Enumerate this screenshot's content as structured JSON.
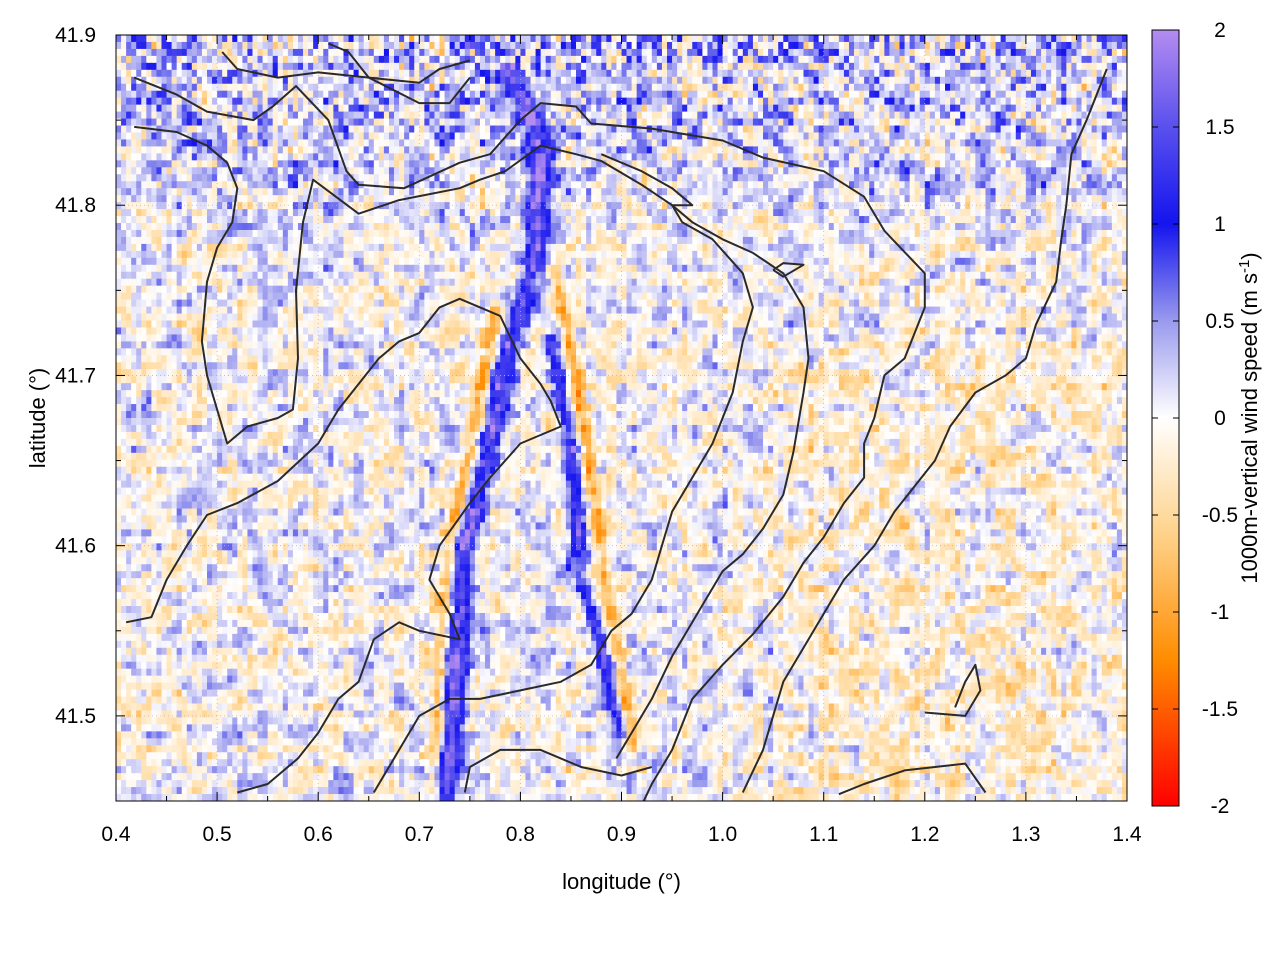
{
  "chart_data": {
    "type": "heatmap",
    "xlabel": "longitude (°)",
    "ylabel": "latitude (°)",
    "xlim": [
      0.4,
      1.4
    ],
    "ylim": [
      41.45,
      41.9
    ],
    "x_ticks": [
      0.4,
      0.5,
      0.6,
      0.7,
      0.8,
      0.9,
      1.0,
      1.1,
      1.2,
      1.3,
      1.4
    ],
    "x_tick_labels": [
      "0.4",
      "0.5",
      "0.6",
      "0.7",
      "0.8",
      "0.9",
      "1.0",
      "1.1",
      "1.2",
      "1.3",
      "1.4"
    ],
    "y_ticks": [
      41.5,
      41.6,
      41.7,
      41.8,
      41.9
    ],
    "y_tick_labels": [
      "41.5",
      "41.6",
      "41.7",
      "41.8",
      "41.9"
    ],
    "grid": true,
    "colorbar": {
      "label_main": "1000m-vertical wind speed (m s",
      "label_sup": "-1",
      "label_end": ")",
      "range": [
        -2,
        2
      ],
      "ticks": [
        2,
        1.5,
        1,
        0.5,
        0,
        -0.5,
        -1,
        -1.5,
        -2
      ],
      "tick_labels": [
        "2",
        "1.5",
        "1",
        "0.5",
        "0",
        "-0.5",
        "-1",
        "-1.5",
        "-2"
      ],
      "colors": [
        {
          "value": -2.0,
          "color": "#ff0000"
        },
        {
          "value": -1.25,
          "color": "#ff8c00"
        },
        {
          "value": -0.6,
          "color": "#ffd28a"
        },
        {
          "value": 0.0,
          "color": "#ffffff"
        },
        {
          "value": 0.5,
          "color": "#9a9aee"
        },
        {
          "value": 1.0,
          "color": "#1414ee"
        },
        {
          "value": 1.5,
          "color": "#5a50ee"
        },
        {
          "value": 2.0,
          "color": "#b48cf0"
        }
      ]
    },
    "features": {
      "updraft_band": [
        [
          0.79,
          41.88
        ],
        [
          0.82,
          41.84
        ],
        [
          0.815,
          41.77
        ],
        [
          0.79,
          41.72
        ],
        [
          0.77,
          41.66
        ],
        [
          0.745,
          41.6
        ],
        [
          0.735,
          41.52
        ],
        [
          0.725,
          41.45
        ]
      ],
      "updraft_band_east": [
        [
          0.83,
          41.72
        ],
        [
          0.85,
          41.66
        ],
        [
          0.86,
          41.58
        ],
        [
          0.885,
          41.53
        ],
        [
          0.9,
          41.49
        ]
      ],
      "downdraft_band_west": [
        [
          0.775,
          41.74
        ],
        [
          0.755,
          41.67
        ],
        [
          0.73,
          41.6
        ],
        [
          0.72,
          41.52
        ],
        [
          0.715,
          41.45
        ]
      ],
      "downdraft_band_east": [
        [
          0.835,
          41.76
        ],
        [
          0.855,
          41.7
        ],
        [
          0.87,
          41.64
        ],
        [
          0.89,
          41.56
        ],
        [
          0.91,
          41.48
        ]
      ]
    },
    "contours": [
      [
        [
          0.418,
          41.875
        ],
        [
          0.46,
          41.865
        ],
        [
          0.49,
          41.855
        ],
        [
          0.536,
          41.85
        ],
        [
          0.555,
          41.858
        ],
        [
          0.578,
          41.87
        ],
        [
          0.61,
          41.85
        ],
        [
          0.628,
          41.82
        ],
        [
          0.64,
          41.812
        ],
        [
          0.685,
          41.81
        ],
        [
          0.74,
          41.825
        ],
        [
          0.77,
          41.83
        ],
        [
          0.8,
          41.85
        ],
        [
          0.82,
          41.86
        ],
        [
          0.855,
          41.858
        ],
        [
          0.87,
          41.848
        ],
        [
          0.93,
          41.845
        ],
        [
          0.98,
          41.84
        ],
        [
          1.0,
          41.838
        ],
        [
          1.04,
          41.828
        ],
        [
          1.1,
          41.82
        ],
        [
          1.14,
          41.805
        ],
        [
          1.16,
          41.785
        ],
        [
          1.2,
          41.76
        ],
        [
          1.2,
          41.74
        ],
        [
          1.18,
          41.71
        ],
        [
          1.16,
          41.7
        ],
        [
          1.15,
          41.675
        ],
        [
          1.14,
          41.66
        ],
        [
          1.14,
          41.64
        ],
        [
          1.12,
          41.625
        ],
        [
          1.1,
          41.605
        ],
        [
          1.08,
          41.59
        ],
        [
          1.06,
          41.57
        ],
        [
          1.03,
          41.548
        ],
        [
          1.0,
          41.53
        ],
        [
          0.97,
          41.51
        ],
        [
          0.95,
          41.48
        ],
        [
          0.93,
          41.46
        ],
        [
          0.922,
          41.45
        ]
      ],
      [
        [
          0.418,
          41.846
        ],
        [
          0.46,
          41.843
        ],
        [
          0.49,
          41.835
        ],
        [
          0.51,
          41.825
        ],
        [
          0.52,
          41.81
        ],
        [
          0.515,
          41.79
        ],
        [
          0.5,
          41.775
        ],
        [
          0.49,
          41.755
        ],
        [
          0.485,
          41.72
        ],
        [
          0.49,
          41.7
        ],
        [
          0.5,
          41.68
        ],
        [
          0.51,
          41.66
        ],
        [
          0.53,
          41.67
        ],
        [
          0.56,
          41.675
        ],
        [
          0.575,
          41.68
        ],
        [
          0.58,
          41.71
        ],
        [
          0.578,
          41.75
        ],
        [
          0.585,
          41.79
        ],
        [
          0.595,
          41.815
        ],
        [
          0.64,
          41.795
        ],
        [
          0.68,
          41.803
        ],
        [
          0.74,
          41.81
        ],
        [
          0.76,
          41.815
        ],
        [
          0.785,
          41.82
        ],
        [
          0.82,
          41.835
        ],
        [
          0.855,
          41.83
        ],
        [
          0.88,
          41.826
        ],
        [
          0.92,
          41.812
        ],
        [
          0.95,
          41.8
        ],
        [
          0.97,
          41.79
        ],
        [
          1.0,
          41.78
        ],
        [
          1.03,
          41.772
        ],
        [
          1.06,
          41.76
        ],
        [
          1.08,
          41.74
        ],
        [
          1.085,
          41.71
        ],
        [
          1.08,
          41.69
        ],
        [
          1.07,
          41.655
        ],
        [
          1.06,
          41.63
        ],
        [
          1.04,
          41.61
        ],
        [
          1.02,
          41.595
        ],
        [
          1.0,
          41.585
        ],
        [
          0.975,
          41.56
        ],
        [
          0.95,
          41.535
        ],
        [
          0.93,
          41.51
        ],
        [
          0.91,
          41.49
        ],
        [
          0.895,
          41.475
        ]
      ],
      [
        [
          0.41,
          41.555
        ],
        [
          0.435,
          41.558
        ],
        [
          0.45,
          41.58
        ],
        [
          0.47,
          41.6
        ],
        [
          0.49,
          41.618
        ],
        [
          0.52,
          41.625
        ],
        [
          0.56,
          41.638
        ],
        [
          0.6,
          41.66
        ],
        [
          0.62,
          41.68
        ],
        [
          0.64,
          41.695
        ],
        [
          0.66,
          41.71
        ],
        [
          0.68,
          41.72
        ],
        [
          0.7,
          41.725
        ],
        [
          0.72,
          41.74
        ],
        [
          0.74,
          41.745
        ],
        [
          0.78,
          41.735
        ],
        [
          0.8,
          41.71
        ],
        [
          0.82,
          41.695
        ],
        [
          0.83,
          41.685
        ],
        [
          0.84,
          41.67
        ],
        [
          0.8,
          41.66
        ],
        [
          0.77,
          41.64
        ],
        [
          0.75,
          41.625
        ],
        [
          0.72,
          41.6
        ],
        [
          0.71,
          41.58
        ],
        [
          0.73,
          41.56
        ],
        [
          0.74,
          41.545
        ],
        [
          0.7,
          41.55
        ],
        [
          0.68,
          41.555
        ],
        [
          0.655,
          41.545
        ],
        [
          0.64,
          41.52
        ],
        [
          0.62,
          41.51
        ],
        [
          0.6,
          41.49
        ],
        [
          0.58,
          41.475
        ],
        [
          0.55,
          41.46
        ],
        [
          0.52,
          41.455
        ]
      ],
      [
        [
          0.655,
          41.455
        ],
        [
          0.68,
          41.48
        ],
        [
          0.7,
          41.5
        ],
        [
          0.73,
          41.51
        ],
        [
          0.76,
          41.51
        ],
        [
          0.8,
          41.515
        ],
        [
          0.84,
          41.52
        ],
        [
          0.87,
          41.53
        ],
        [
          0.89,
          41.55
        ],
        [
          0.91,
          41.56
        ],
        [
          0.93,
          41.58
        ],
        [
          0.94,
          41.6
        ],
        [
          0.95,
          41.62
        ],
        [
          0.97,
          41.64
        ],
        [
          0.99,
          41.66
        ],
        [
          1.01,
          41.69
        ],
        [
          1.02,
          41.72
        ],
        [
          1.03,
          41.74
        ],
        [
          1.02,
          41.76
        ],
        [
          0.99,
          41.78
        ],
        [
          0.96,
          41.79
        ],
        [
          0.95,
          41.8
        ],
        [
          0.97,
          41.8
        ],
        [
          0.95,
          41.81
        ],
        [
          0.92,
          41.82
        ],
        [
          0.88,
          41.83
        ]
      ],
      [
        [
          0.745,
          41.455
        ],
        [
          0.75,
          41.47
        ],
        [
          0.78,
          41.48
        ],
        [
          0.82,
          41.48
        ],
        [
          0.86,
          41.47
        ],
        [
          0.9,
          41.465
        ],
        [
          0.93,
          41.47
        ]
      ],
      [
        [
          1.02,
          41.455
        ],
        [
          1.04,
          41.48
        ],
        [
          1.06,
          41.52
        ],
        [
          1.09,
          41.55
        ],
        [
          1.12,
          41.58
        ],
        [
          1.15,
          41.6
        ],
        [
          1.17,
          41.62
        ],
        [
          1.19,
          41.635
        ],
        [
          1.21,
          41.65
        ],
        [
          1.225,
          41.67
        ],
        [
          1.25,
          41.69
        ],
        [
          1.28,
          41.7
        ],
        [
          1.3,
          41.71
        ],
        [
          1.31,
          41.73
        ],
        [
          1.33,
          41.755
        ],
        [
          1.335,
          41.78
        ],
        [
          1.34,
          41.8
        ],
        [
          1.345,
          41.83
        ],
        [
          1.36,
          41.85
        ],
        [
          1.38,
          41.88
        ]
      ],
      [
        [
          1.115,
          41.454
        ],
        [
          1.14,
          41.46
        ],
        [
          1.18,
          41.468
        ],
        [
          1.24,
          41.472
        ],
        [
          1.26,
          41.455
        ]
      ],
      [
        [
          1.2,
          41.502
        ],
        [
          1.24,
          41.5
        ],
        [
          1.255,
          41.515
        ],
        [
          1.25,
          41.53
        ],
        [
          1.24,
          41.52
        ],
        [
          1.23,
          41.505
        ]
      ],
      [
        [
          1.05,
          41.762
        ],
        [
          1.06,
          41.766
        ],
        [
          1.08,
          41.765
        ],
        [
          1.06,
          41.758
        ],
        [
          1.05,
          41.762
        ]
      ],
      [
        [
          0.505,
          41.89
        ],
        [
          0.52,
          41.88
        ],
        [
          0.56,
          41.875
        ],
        [
          0.6,
          41.878
        ],
        [
          0.65,
          41.875
        ],
        [
          0.7,
          41.872
        ],
        [
          0.72,
          41.88
        ],
        [
          0.75,
          41.885
        ]
      ],
      [
        [
          0.61,
          41.895
        ],
        [
          0.63,
          41.89
        ],
        [
          0.65,
          41.875
        ],
        [
          0.7,
          41.86
        ],
        [
          0.73,
          41.86
        ],
        [
          0.75,
          41.875
        ]
      ]
    ]
  }
}
